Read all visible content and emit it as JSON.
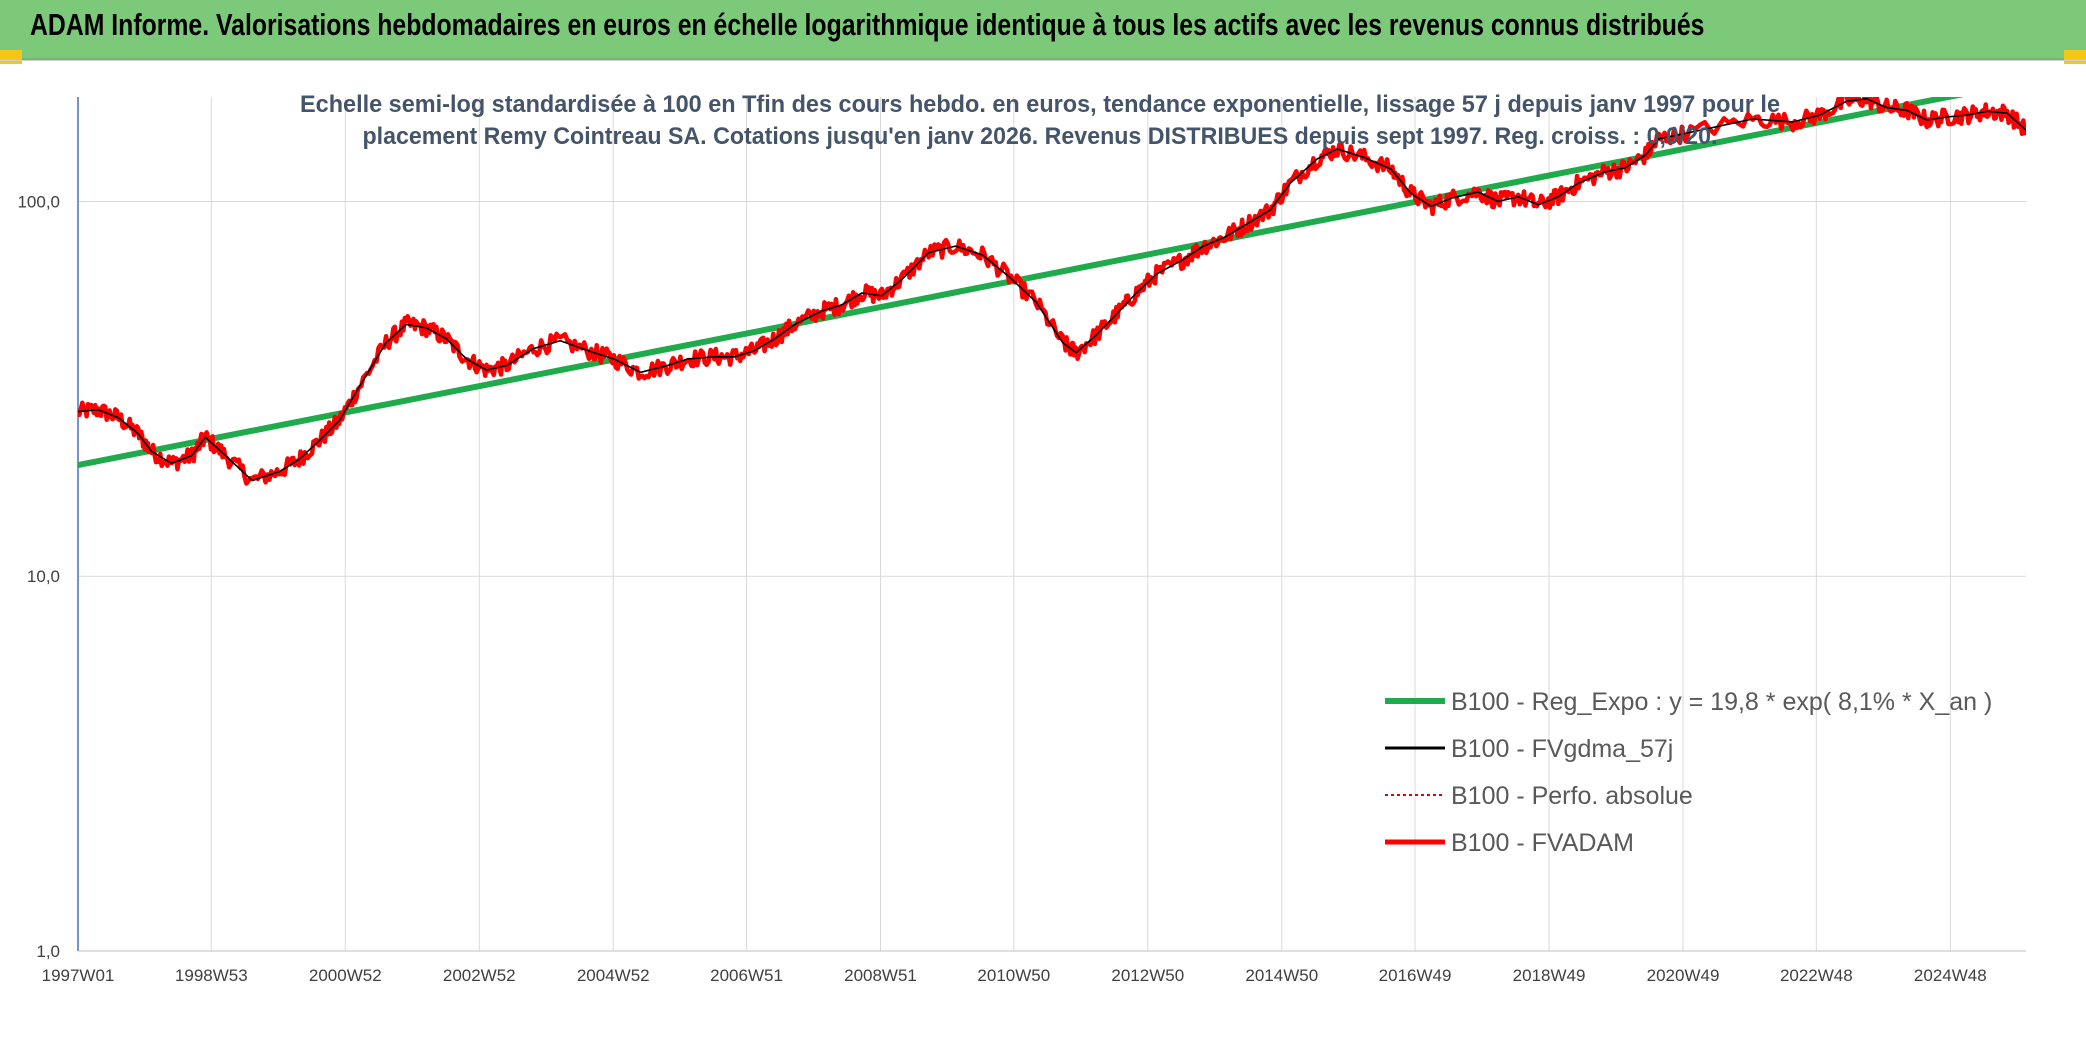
{
  "header": {
    "title": "ADAM Informe. Valorisations hebdomadaires en euros en échelle logarithmique identique à tous les actifs avec les revenus connus distribués"
  },
  "colors": {
    "header_bg": "#7dc97a",
    "corner_accent": "#f5c518",
    "regression": "#1faa4b",
    "smoothed": "#000000",
    "perf_absolue": "#e00000",
    "fvadam": "#ff0000"
  },
  "chart_data": {
    "type": "line",
    "subtitle_line1": "Echelle semi-log standardisée à 100 en Tfin des cours hebdo. en euros, tendance exponentielle, lissage 57 j depuis janv 1997 pour le",
    "subtitle_line2": "placement Remy Cointreau SA. Cotations jusqu'en janv 2026. Revenus DISTRIBUES depuis sept 1997. Reg. croiss. : 0,0/20.",
    "y_scale": "log",
    "ylim": [
      1,
      190
    ],
    "xlim": [
      1997.0,
      2026.08
    ],
    "grid": true,
    "legend_position": "bottom-right",
    "y_ticks": [
      {
        "value": 1,
        "label": "1,0"
      },
      {
        "value": 10,
        "label": "10,0"
      },
      {
        "value": 100,
        "label": "100,0"
      }
    ],
    "x_ticks": [
      {
        "value": 1997.0,
        "label": "1997W01"
      },
      {
        "value": 1998.99,
        "label": "1998W53"
      },
      {
        "value": 2000.99,
        "label": "2000W52"
      },
      {
        "value": 2002.99,
        "label": "2002W52"
      },
      {
        "value": 2004.99,
        "label": "2004W52"
      },
      {
        "value": 2006.98,
        "label": "2006W51"
      },
      {
        "value": 2008.98,
        "label": "2008W51"
      },
      {
        "value": 2010.97,
        "label": "2010W50"
      },
      {
        "value": 2012.97,
        "label": "2012W50"
      },
      {
        "value": 2014.97,
        "label": "2014W50"
      },
      {
        "value": 2016.96,
        "label": "2016W49"
      },
      {
        "value": 2018.96,
        "label": "2018W49"
      },
      {
        "value": 2020.96,
        "label": "2020W49"
      },
      {
        "value": 2022.95,
        "label": "2022W48"
      },
      {
        "value": 2024.95,
        "label": "2024W48"
      }
    ],
    "regression": {
      "a": 19.8,
      "rate": 0.081
    },
    "series": [
      {
        "name": "B100 - Reg_Expo : y = 19,8 * exp( 8,1% *  X_an )",
        "role": "regression"
      },
      {
        "name": "B100 - FVgdma_57j",
        "role": "smoothed",
        "x": [
          1997.0,
          1997.3,
          1997.6,
          1997.9,
          1998.1,
          1998.4,
          1998.7,
          1998.9,
          1999.2,
          1999.6,
          2000.0,
          2000.3,
          2000.6,
          2000.9,
          2001.2,
          2001.6,
          2001.9,
          2002.2,
          2002.5,
          2002.8,
          2003.1,
          2003.4,
          2003.8,
          2004.2,
          2004.7,
          2005.0,
          2005.4,
          2005.8,
          2006.1,
          2006.5,
          2006.8,
          2007.1,
          2007.4,
          2007.7,
          2008.1,
          2008.4,
          2008.7,
          2009.0,
          2009.3,
          2009.7,
          2010.1,
          2010.5,
          2010.9,
          2011.3,
          2011.7,
          2011.9,
          2012.2,
          2012.5,
          2012.8,
          2013.1,
          2013.5,
          2013.8,
          2014.1,
          2014.4,
          2014.8,
          2015.1,
          2015.5,
          2015.8,
          2016.2,
          2016.6,
          2016.9,
          2017.2,
          2017.5,
          2017.9,
          2018.2,
          2018.5,
          2018.8,
          2019.1,
          2019.4,
          2019.8,
          2020.1,
          2020.4,
          2020.6,
          2021.0,
          2022.0,
          2022.6,
          2023.0,
          2023.4,
          2023.7,
          2024.0,
          2024.3,
          2024.6,
          2024.9,
          2025.2,
          2025.5,
          2025.8,
          2026.08
        ],
        "y": [
          27.5,
          27.8,
          26.5,
          24.0,
          21.5,
          20.0,
          21.0,
          23.5,
          21.0,
          18.0,
          19.0,
          20.5,
          23.0,
          26.0,
          32.0,
          42.0,
          47.0,
          46.0,
          43.0,
          38.0,
          35.5,
          36.5,
          40.5,
          42.5,
          39.5,
          38.0,
          35.0,
          36.5,
          38.0,
          38.5,
          38.5,
          40.0,
          43.0,
          47.0,
          51.0,
          53.0,
          57.0,
          56.0,
          62.0,
          73.0,
          76.0,
          72.0,
          63.0,
          54.0,
          42.0,
          39.5,
          44.0,
          50.0,
          57.0,
          64.0,
          70.0,
          76.0,
          80.0,
          86.0,
          95.0,
          112.0,
          130.0,
          138.0,
          131.0,
          122.0,
          105.0,
          97.0,
          102.0,
          106.0,
          100.0,
          103.0,
          98.0,
          103.0,
          112.0,
          120.0,
          123.0,
          133.0,
          147.0,
          152.0,
          166.0,
          163.0,
          170.0,
          185.0,
          188.0,
          178.0,
          175.0,
          165.0,
          168.0,
          170.0,
          174.0,
          172.0,
          155.0
        ]
      },
      {
        "name": "B100 - Perfo. absolue",
        "role": "perf"
      },
      {
        "name": "B100 - FVADAM",
        "role": "fvadam",
        "x": [
          1997.0,
          1997.3,
          1997.6,
          1997.9,
          1998.1,
          1998.4,
          1998.7,
          1998.9,
          1999.2,
          1999.6,
          2000.0,
          2000.3,
          2000.6,
          2000.9,
          2001.2,
          2001.6,
          2001.9,
          2002.2,
          2002.5,
          2002.8,
          2003.1,
          2003.4,
          2003.8,
          2004.2,
          2004.7,
          2005.0,
          2005.4,
          2005.8,
          2006.1,
          2006.5,
          2006.8,
          2007.1,
          2007.4,
          2007.7,
          2008.1,
          2008.4,
          2008.7,
          2009.0,
          2009.3,
          2009.7,
          2010.1,
          2010.5,
          2010.9,
          2011.3,
          2011.7,
          2011.9,
          2012.2,
          2012.5,
          2012.8,
          2013.1,
          2013.5,
          2013.8,
          2014.1,
          2014.4,
          2014.8,
          2015.1,
          2015.5,
          2015.8,
          2016.2,
          2016.6,
          2016.9,
          2017.2,
          2017.5,
          2017.9,
          2018.2,
          2018.5,
          2018.8,
          2019.1,
          2019.4,
          2019.8,
          2020.1,
          2020.4,
          2020.6,
          2021.0,
          2022.0,
          2022.6,
          2023.0,
          2023.4,
          2023.7,
          2024.0,
          2024.3,
          2024.6,
          2024.9,
          2025.2,
          2025.5,
          2025.8,
          2026.08
        ],
        "y": [
          27.5,
          27.8,
          26.5,
          24.0,
          21.5,
          20.0,
          21.0,
          23.5,
          21.0,
          18.0,
          19.0,
          20.5,
          23.0,
          26.0,
          32.0,
          42.0,
          47.0,
          46.0,
          43.0,
          38.0,
          35.5,
          36.5,
          40.5,
          42.5,
          39.5,
          38.0,
          35.0,
          36.5,
          38.0,
          38.5,
          38.5,
          40.0,
          43.0,
          47.0,
          51.0,
          53.0,
          57.0,
          56.0,
          62.0,
          73.0,
          76.0,
          72.0,
          63.0,
          54.0,
          42.0,
          39.5,
          44.0,
          50.0,
          57.0,
          64.0,
          70.0,
          76.0,
          80.0,
          86.0,
          95.0,
          112.0,
          130.0,
          138.0,
          131.0,
          122.0,
          105.0,
          97.0,
          102.0,
          106.0,
          100.0,
          103.0,
          98.0,
          103.0,
          112.0,
          120.0,
          123.0,
          133.0,
          147.0,
          152.0,
          166.0,
          163.0,
          170.0,
          185.0,
          188.0,
          178.0,
          175.0,
          165.0,
          168.0,
          170.0,
          174.0,
          172.0,
          155.0
        ]
      }
    ]
  }
}
